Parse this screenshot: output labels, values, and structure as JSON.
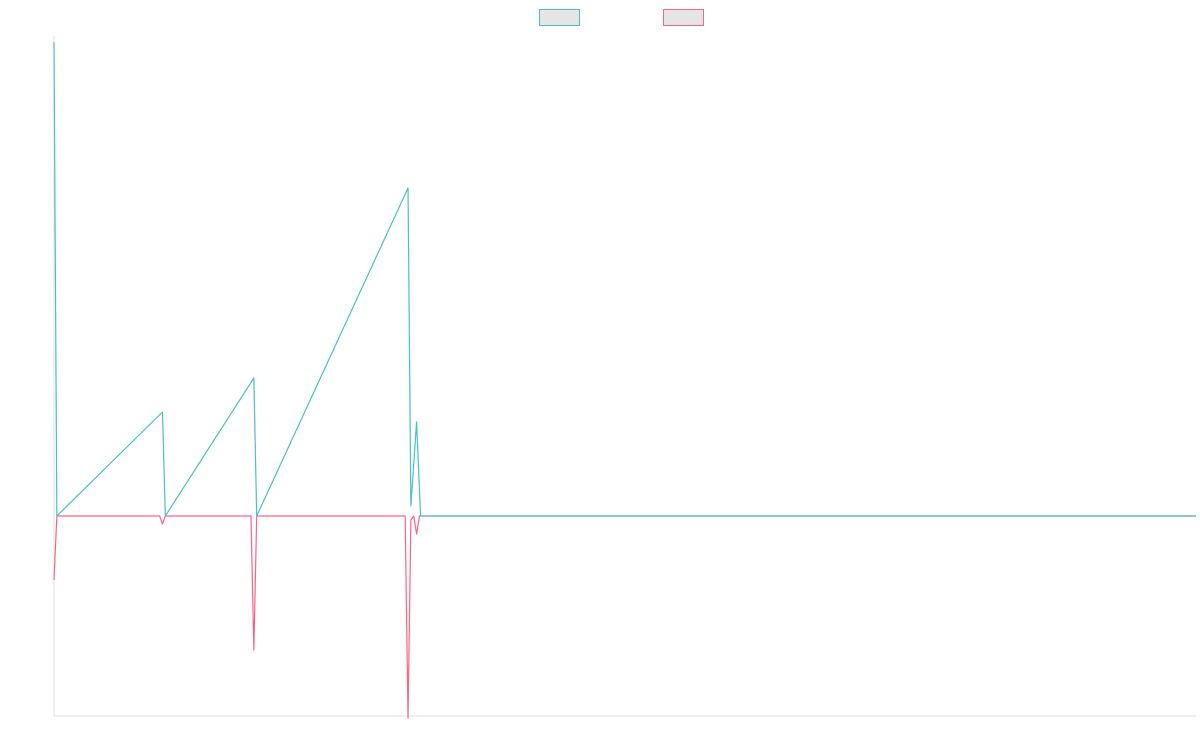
{
  "chart_data": {
    "type": "line",
    "title": "",
    "xlabel": "",
    "ylabel": "",
    "legend": {
      "position": "top-center",
      "entries": [
        {
          "label": "",
          "color": "#4bc0c0",
          "fill": "#e5e5e5"
        },
        {
          "label": "",
          "color": "#ff6384",
          "fill": "#e5e5e5"
        }
      ]
    },
    "grid": false,
    "x": [
      0,
      10,
      19,
      35,
      62,
      63,
      64
    ],
    "xlim": [
      0,
      200
    ],
    "ylim": [
      -100,
      240
    ],
    "series": [
      {
        "color": "#4bc0c0",
        "points": [
          [
            0,
            237
          ],
          [
            0.5,
            0
          ],
          [
            19,
            52
          ],
          [
            19.5,
            0
          ],
          [
            35,
            69
          ],
          [
            35.5,
            0
          ],
          [
            62,
            164
          ],
          [
            62.5,
            5
          ],
          [
            63.5,
            47
          ],
          [
            64.2,
            0
          ],
          [
            200,
            0
          ]
        ]
      },
      {
        "color": "#ff6384",
        "points": [
          [
            0,
            -32
          ],
          [
            0.5,
            0
          ],
          [
            18.5,
            0
          ],
          [
            19,
            -4
          ],
          [
            19.5,
            0
          ],
          [
            34.5,
            0
          ],
          [
            35,
            -67
          ],
          [
            35.5,
            0
          ],
          [
            61.5,
            0
          ],
          [
            62,
            -101
          ],
          [
            62.5,
            -2
          ],
          [
            63,
            0
          ],
          [
            63.5,
            -9
          ],
          [
            64,
            0
          ],
          [
            200,
            0
          ]
        ]
      }
    ]
  }
}
